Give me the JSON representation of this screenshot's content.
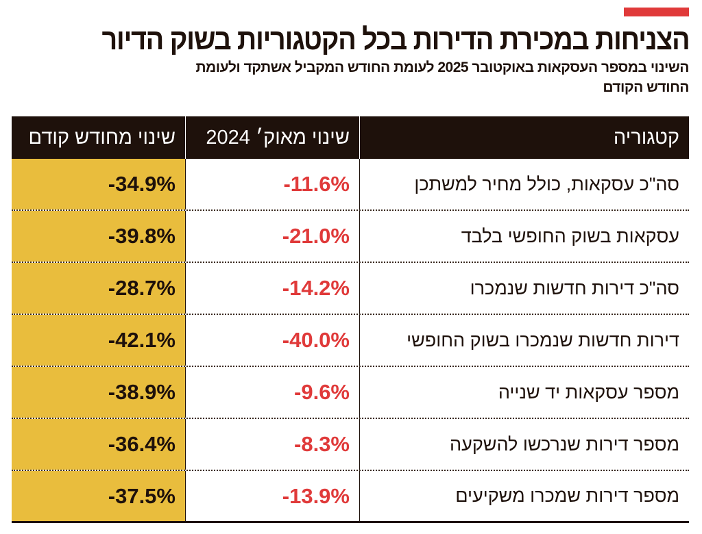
{
  "title": "הצניחות במכירת הדירות בכל הקטגוריות בשוק הדיור",
  "subtitle": "השינוי במספר העסקאות באוקטובר 2025 לעומת החודש המקביל אשתקד ולעומת החודש הקודם",
  "colors": {
    "accent_red": "#e03a3a",
    "highlight_yellow": "#e9bd3d",
    "header_dark": "#1e110b"
  },
  "chart_data": {
    "type": "table",
    "columns": [
      "קטגוריה",
      "שינוי מאוק׳ 2024",
      "שינוי מחודש קודם"
    ],
    "rows": [
      {
        "category": "סה\"כ עסקאות, כולל מחיר למשתכן",
        "yoy": "-11.6%",
        "mom": "-34.9%"
      },
      {
        "category": "עסקאות בשוק החופשי בלבד",
        "yoy": "-21.0%",
        "mom": "-39.8%"
      },
      {
        "category": "סה\"כ דירות חדשות שנמכרו",
        "yoy": "-14.2%",
        "mom": "-28.7%"
      },
      {
        "category": "דירות חדשות שנמכרו בשוק החופשי",
        "yoy": "-40.0%",
        "mom": "-42.1%"
      },
      {
        "category": "מספר עסקאות יד שנייה",
        "yoy": "-9.6%",
        "mom": "-38.9%"
      },
      {
        "category": "מספר דירות שנרכשו להשקעה",
        "yoy": "-8.3%",
        "mom": "-36.4%"
      },
      {
        "category": "מספר דירות שמכרו משקיעים",
        "yoy": "-13.9%",
        "mom": "-37.5%"
      }
    ]
  }
}
